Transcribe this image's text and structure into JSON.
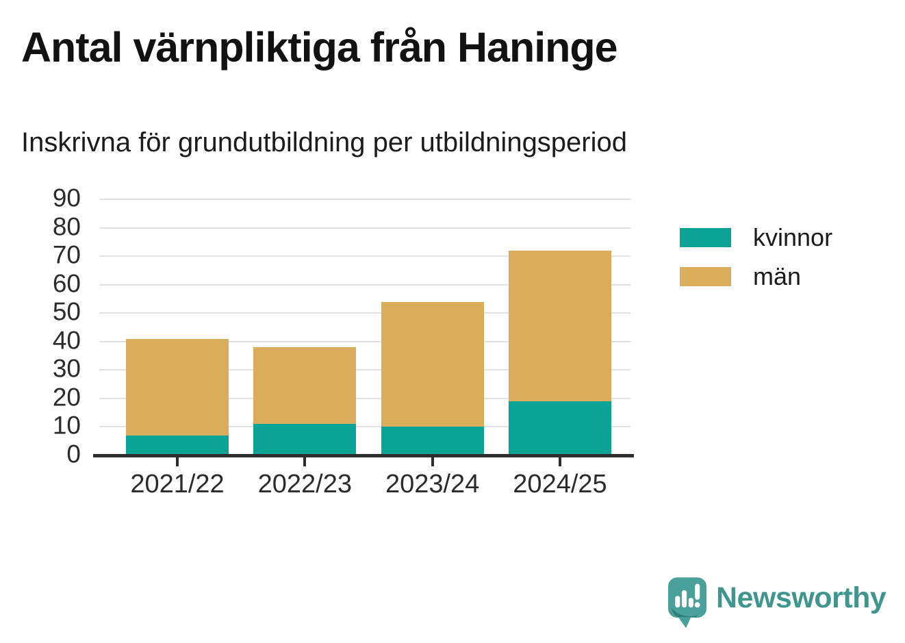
{
  "title": "Antal värnpliktiga från Haninge",
  "subtitle": "Inskrivna för grundutbildning per utbildningsperiod",
  "chart_data": {
    "type": "bar",
    "stacked": true,
    "title": "Antal värnpliktiga från Haninge",
    "subtitle": "Inskrivna för grundutbildning per utbildningsperiod",
    "categories": [
      "2021/22",
      "2022/23",
      "2023/24",
      "2024/25"
    ],
    "series": [
      {
        "name": "kvinnor",
        "color": "#0aa396",
        "values": [
          7,
          11,
          10,
          19
        ]
      },
      {
        "name": "män",
        "color": "#d9ad5c",
        "values": [
          34,
          27,
          44,
          53
        ]
      }
    ],
    "stack_totals": [
      41,
      38,
      54,
      72
    ],
    "xlabel": "",
    "ylabel": "",
    "ylim": [
      0,
      90
    ],
    "yticks": [
      0,
      10,
      20,
      30,
      40,
      50,
      60,
      70,
      80,
      90
    ],
    "grid": true,
    "legend_position": "right"
  },
  "legend": {
    "items": [
      {
        "label": "kvinnor",
        "color": "#0aa396"
      },
      {
        "label": "män",
        "color": "#d9ad5c"
      }
    ]
  },
  "colors": {
    "kvinnor": "#0aa396",
    "man": "#d9ad5c",
    "gridline": "#e2e2e2",
    "axis": "#2d2d2d",
    "title_text": "#121212",
    "tick_text": "#2b2b2b",
    "brand_text": "#3f968f",
    "brand_bubble": "#4aa09a",
    "brand_bubble_shadow": "#2e7d78"
  },
  "footer": {
    "brand": "Newsworthy",
    "logo_icon": "speech-bubble-bar-chart-icon"
  }
}
